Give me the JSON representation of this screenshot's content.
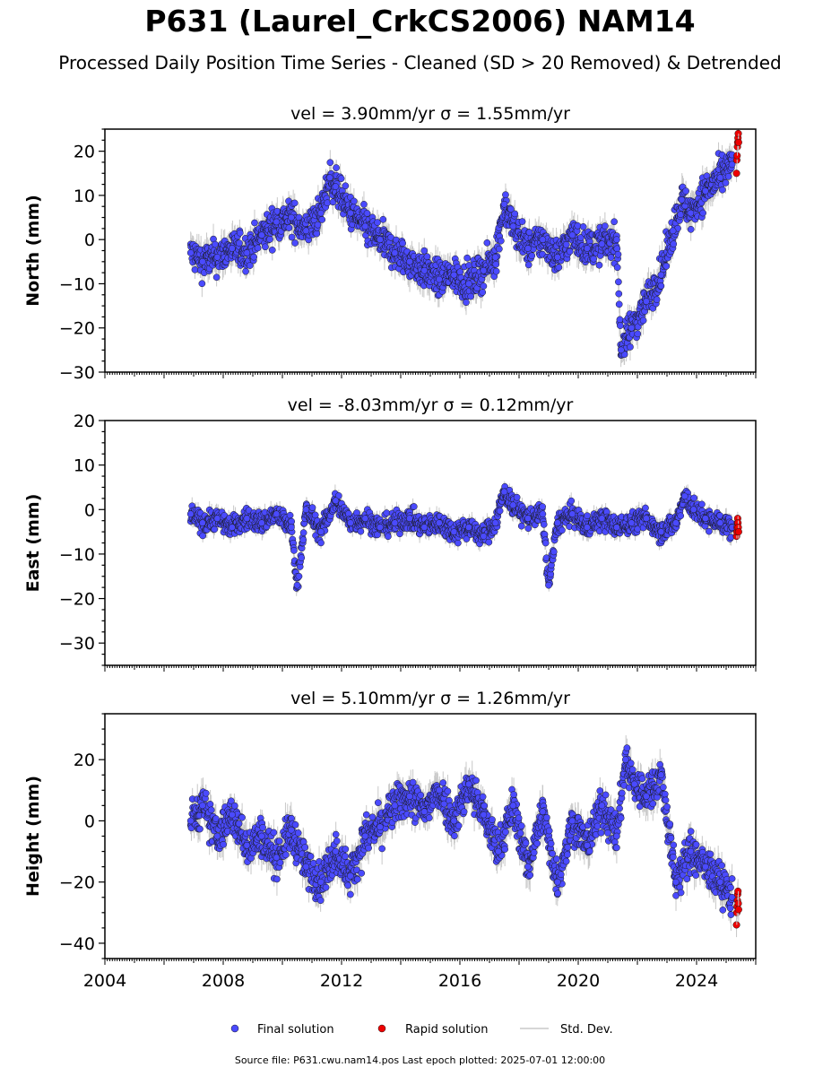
{
  "title": "P631 (Laurel_CrkCS2006) NAM14",
  "subtitle": "Processed Daily Position Time Series - Cleaned (SD > 20 Removed) & Detrended",
  "footer": "Source file: P631.cwu.nam14.pos  Last epoch plotted: 2025-07-01 12:00:00",
  "colors": {
    "final": "#4a4aff",
    "rapid": "#ee0000",
    "stddev": "#c8c8c8",
    "marker_edge": "#1a1a1a"
  },
  "legend": {
    "final": "Final solution",
    "rapid": "Rapid solution",
    "stddev": "Std. Dev."
  },
  "chart_data": [
    {
      "type": "scatter",
      "title": "vel = 3.90mm/yr   σ = 1.55mm/yr",
      "ylabel": "North (mm)",
      "xlim": [
        2004,
        2026
      ],
      "ylim": [
        -30,
        25
      ],
      "yticks": [
        -30,
        -20,
        -10,
        0,
        10,
        20
      ],
      "xticks": [
        2004,
        2008,
        2012,
        2016,
        2020,
        2024
      ],
      "xtick_labels_shown": false,
      "series": [
        {
          "kind": "final",
          "x": [
            2006.9,
            2007.3,
            2007.8,
            2008.3,
            2008.8,
            2009.3,
            2009.8,
            2010.3,
            2010.8,
            2011.3,
            2011.6,
            2011.8,
            2012.3,
            2012.8,
            2013.3,
            2013.8,
            2014.3,
            2014.8,
            2015.3,
            2015.8,
            2016.3,
            2016.8,
            2017.2,
            2017.5,
            2017.8,
            2018.3,
            2018.8,
            2019.3,
            2019.8,
            2020.3,
            2020.8,
            2021.3,
            2021.45,
            2021.8,
            2022.3,
            2022.8,
            2023.2,
            2023.5,
            2023.8,
            2024.3,
            2024.8,
            2025.2
          ],
          "y": [
            -3,
            -5,
            -4,
            -2,
            -3,
            1,
            4,
            5,
            2,
            6,
            14,
            12,
            6,
            3,
            0,
            -3,
            -5,
            -7,
            -9,
            -8,
            -10,
            -7,
            -4,
            8,
            3,
            -2,
            0,
            -4,
            1,
            -2,
            -1,
            0,
            -25,
            -20,
            -14,
            -8,
            2,
            9,
            6,
            11,
            14,
            17
          ],
          "sd": [
            2.5,
            2.5,
            2.5,
            2.5,
            2.5,
            2.5,
            2.5,
            2.5,
            2.5,
            2.5,
            2.5,
            2.5,
            2.5,
            2.5,
            2.5,
            2.5,
            2.5,
            2.5,
            2.5,
            2.5,
            2.5,
            2.5,
            2.5,
            2.5,
            2.5,
            2.5,
            2.5,
            2.5,
            2.5,
            2.5,
            2.5,
            2.5,
            2.5,
            2.5,
            2.5,
            2.5,
            2.5,
            2.5,
            2.5,
            2.5,
            2.5,
            2.5
          ]
        },
        {
          "kind": "rapid",
          "x": [
            2025.35,
            2025.36,
            2025.37,
            2025.38,
            2025.39,
            2025.4,
            2025.41,
            2025.42
          ],
          "y": [
            15,
            18,
            19,
            21,
            22,
            23,
            24,
            22
          ],
          "sd": [
            2,
            2,
            2,
            2,
            2,
            2,
            2,
            2
          ]
        }
      ]
    },
    {
      "type": "scatter",
      "title": "vel = -8.03mm/yr   σ = 0.12mm/yr",
      "ylabel": "East (mm)",
      "xlim": [
        2004,
        2026
      ],
      "ylim": [
        -35,
        20
      ],
      "yticks": [
        -30,
        -20,
        -10,
        0,
        10,
        20
      ],
      "xticks": [
        2004,
        2008,
        2012,
        2016,
        2020,
        2024
      ],
      "xtick_labels_shown": false,
      "series": [
        {
          "kind": "final",
          "x": [
            2006.9,
            2007.3,
            2007.8,
            2008.3,
            2008.8,
            2009.3,
            2009.8,
            2010.3,
            2010.5,
            2010.8,
            2011.3,
            2011.8,
            2012.3,
            2012.8,
            2013.3,
            2013.8,
            2014.3,
            2014.8,
            2015.3,
            2015.8,
            2016.3,
            2016.8,
            2017.2,
            2017.5,
            2017.8,
            2018.3,
            2018.8,
            2019.0,
            2019.3,
            2019.8,
            2020.3,
            2020.8,
            2021.3,
            2021.8,
            2022.3,
            2022.8,
            2023.3,
            2023.6,
            2023.9,
            2024.3,
            2024.8,
            2025.2
          ],
          "y": [
            -1,
            -3,
            -2,
            -4,
            -2,
            -3,
            -1,
            -4,
            -17,
            0,
            -5,
            2,
            -3,
            -2,
            -4,
            -3,
            -2,
            -4,
            -3,
            -5,
            -4,
            -6,
            -3,
            4,
            1,
            -2,
            -1,
            -17,
            -3,
            -1,
            -4,
            -2,
            -4,
            -3,
            -2,
            -5,
            -3,
            3,
            0,
            -2,
            -3,
            -4
          ],
          "sd": [
            1.5,
            1.5,
            1.5,
            1.5,
            1.5,
            1.5,
            1.5,
            1.5,
            1.5,
            1.5,
            1.5,
            1.5,
            1.5,
            1.5,
            1.5,
            1.5,
            1.5,
            1.5,
            1.5,
            1.5,
            1.5,
            1.5,
            1.5,
            1.5,
            1.5,
            1.5,
            1.5,
            1.5,
            1.5,
            1.5,
            1.5,
            1.5,
            1.5,
            1.5,
            1.5,
            1.5,
            1.5,
            1.5,
            1.5,
            1.5,
            1.5,
            1.5
          ]
        },
        {
          "kind": "rapid",
          "x": [
            2025.35,
            2025.36,
            2025.37,
            2025.38,
            2025.39,
            2025.4,
            2025.41,
            2025.42
          ],
          "y": [
            -6,
            -5,
            -4,
            -3,
            -2,
            -3,
            -4,
            -5
          ],
          "sd": [
            1.5,
            1.5,
            1.5,
            1.5,
            1.5,
            1.5,
            1.5,
            1.5
          ]
        }
      ]
    },
    {
      "type": "scatter",
      "title": "vel = 5.10mm/yr   σ = 1.26mm/yr",
      "ylabel": "Height (mm)",
      "xlim": [
        2004,
        2026
      ],
      "ylim": [
        -45,
        35
      ],
      "yticks": [
        -40,
        -20,
        0,
        20
      ],
      "xticks": [
        2004,
        2008,
        2012,
        2016,
        2020,
        2024
      ],
      "xtick_labels_shown": true,
      "series": [
        {
          "kind": "final",
          "x": [
            2006.9,
            2007.3,
            2007.8,
            2008.3,
            2008.8,
            2009.3,
            2009.8,
            2010.3,
            2010.8,
            2011.3,
            2011.8,
            2012.3,
            2012.8,
            2013.3,
            2013.8,
            2014.3,
            2014.8,
            2015.3,
            2015.8,
            2016.3,
            2016.8,
            2017.3,
            2017.8,
            2018.3,
            2018.8,
            2019.3,
            2019.8,
            2020.3,
            2020.8,
            2021.3,
            2021.6,
            2021.9,
            2022.3,
            2022.8,
            2023.3,
            2023.8,
            2024.3,
            2024.8,
            2025.2
          ],
          "y": [
            0,
            5,
            -5,
            2,
            -8,
            -5,
            -12,
            -3,
            -15,
            -20,
            -10,
            -18,
            -5,
            -2,
            5,
            8,
            3,
            10,
            0,
            12,
            2,
            -10,
            5,
            -15,
            3,
            -20,
            0,
            -8,
            5,
            -5,
            20,
            12,
            8,
            15,
            -20,
            -10,
            -15,
            -20,
            -25
          ],
          "sd": [
            4,
            4,
            4,
            4,
            4,
            4,
            4,
            4,
            4,
            4,
            4,
            4,
            4,
            4,
            4,
            4,
            4,
            4,
            4,
            4,
            4,
            4,
            4,
            4,
            4,
            4,
            4,
            4,
            4,
            4,
            4,
            4,
            4,
            4,
            4,
            4,
            4,
            4,
            4
          ]
        },
        {
          "kind": "rapid",
          "x": [
            2025.35,
            2025.36,
            2025.37,
            2025.38,
            2025.39,
            2025.4,
            2025.41,
            2025.42
          ],
          "y": [
            -34,
            -30,
            -28,
            -26,
            -24,
            -23,
            -27,
            -29
          ],
          "sd": [
            4,
            4,
            4,
            4,
            4,
            4,
            4,
            4
          ]
        }
      ]
    }
  ]
}
